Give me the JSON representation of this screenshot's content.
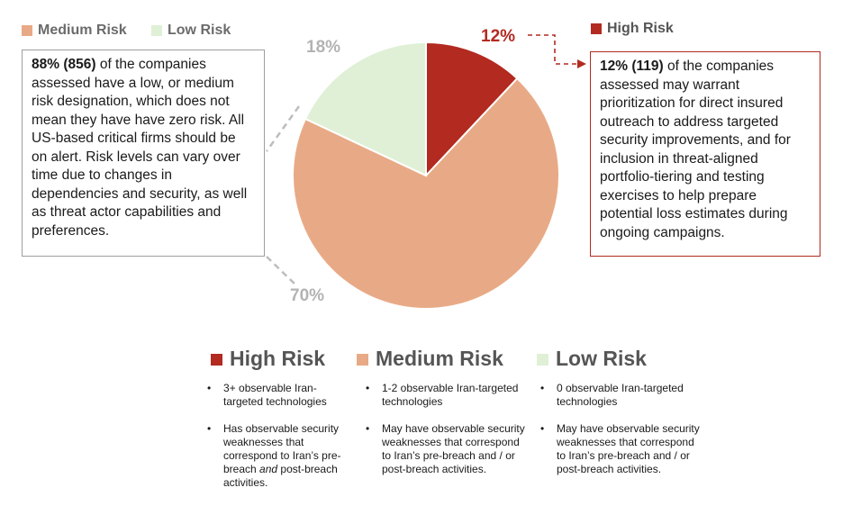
{
  "colors": {
    "high": "#b22a20",
    "medium": "#e8aa86",
    "low": "#dff0d6",
    "pct_gray": "#b3b3b3"
  },
  "top_legend": {
    "medium": "Medium Risk",
    "low": "Low Risk",
    "high": "High Risk"
  },
  "left_box": {
    "bold": "88% (856)",
    "text": " of the companies assessed have a low, or medium risk designation, which does not mean they have have zero risk. All US-based critical firms should be on alert. Risk levels can vary over time due to changes in dependencies and security, as well as threat actor capabilities and preferences."
  },
  "right_box": {
    "bold": "12% (119)",
    "text": " of the companies assessed may warrant prioritization for direct insured outreach to address targeted security improvements, and for inclusion in threat-aligned portfolio-tiering and testing exercises to help prepare potential loss estimates during ongoing campaigns."
  },
  "chart_data": {
    "type": "pie",
    "title": "",
    "slices": [
      {
        "label": "High Risk",
        "value": 12,
        "display": "12%",
        "color": "#b22a20"
      },
      {
        "label": "Medium Risk",
        "value": 70,
        "display": "70%",
        "color": "#e8aa86"
      },
      {
        "label": "Low Risk",
        "value": 18,
        "display": "18%",
        "color": "#dff0d6"
      }
    ]
  },
  "bottom_legend": [
    {
      "title": "High Risk",
      "color": "#b22a20",
      "b1": "3+ observable Iran-targeted technologies",
      "b2_pre": "Has observable security weaknesses that correspond to Iran’s pre-breach ",
      "b2_em": "and",
      "b2_post": " post-breach activities."
    },
    {
      "title": "Medium Risk",
      "color": "#e8aa86",
      "b1": "1-2 observable Iran-targeted technologies",
      "b2_pre": "May have observable security weaknesses that correspond to Iran’s pre-breach and / or post-breach activities.",
      "b2_em": "",
      "b2_post": ""
    },
    {
      "title": "Low Risk",
      "color": "#dff0d6",
      "b1": "0 observable Iran-targeted technologies",
      "b2_pre": "May have observable security weaknesses that correspond to Iran’s pre-breach and / or post-breach activities.",
      "b2_em": "",
      "b2_post": ""
    }
  ]
}
